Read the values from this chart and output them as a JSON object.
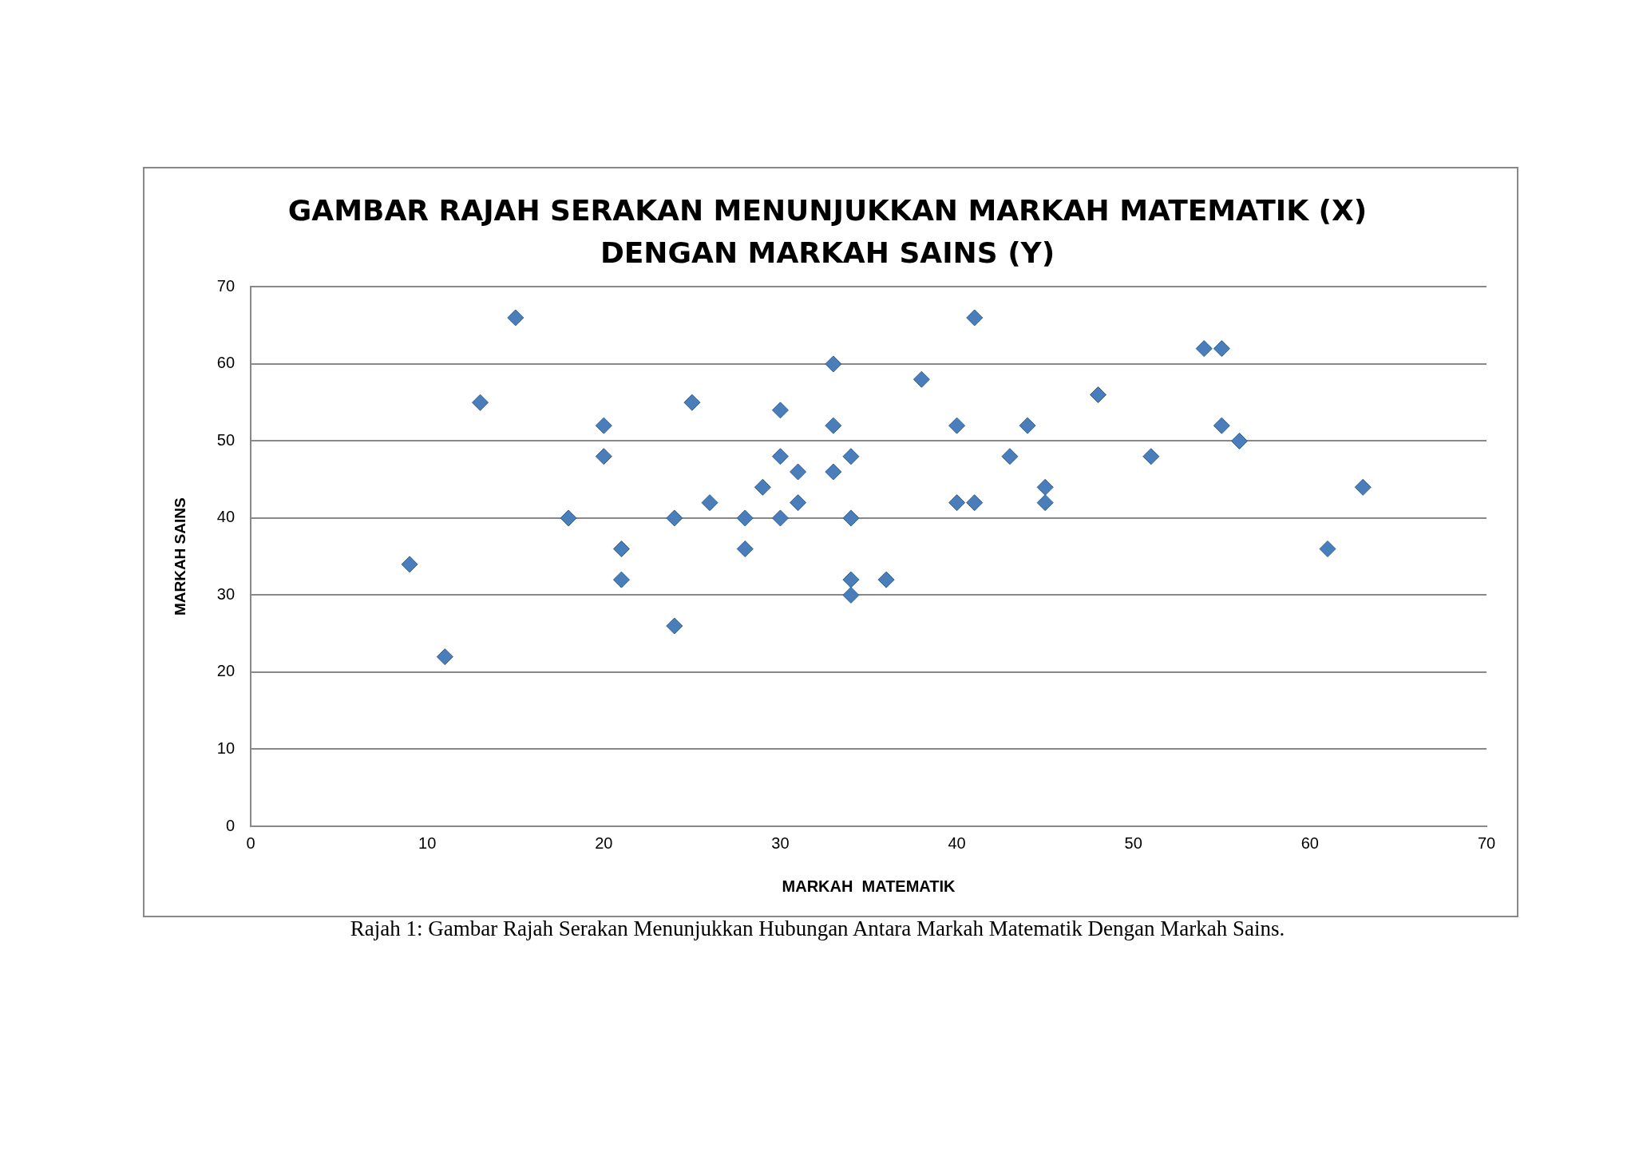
{
  "chart_data": {
    "type": "scatter",
    "title": "GAMBAR RAJAH SERAKAN MENUNJUKKAN MARKAH MATEMATIK (X)\nDENGAN MARKAH SAINS (Y)",
    "xlabel": "MARKAH  MATEMATIK",
    "ylabel": "MARKAH SAINS",
    "annotations": [
      "Rajah 1: Gambar Rajah Serakan Menunjukkan Hubungan Antara Markah Matematik Dengan Markah Sains."
    ],
    "x": [
      9,
      11,
      13,
      15,
      18,
      20,
      20,
      21,
      21,
      24,
      24,
      25,
      26,
      28,
      28,
      29,
      30,
      30,
      30,
      31,
      31,
      33,
      33,
      33,
      34,
      34,
      34,
      34,
      36,
      38,
      40,
      40,
      41,
      41,
      43,
      44,
      45,
      45,
      48,
      51,
      54,
      55,
      55,
      56,
      61,
      63
    ],
    "series": [
      {
        "color": "#4a7ebb",
        "values": [
          34,
          22,
          55,
          66,
          40,
          52,
          48,
          36,
          32,
          40,
          26,
          55,
          42,
          40,
          36,
          44,
          54,
          48,
          40,
          46,
          42,
          60,
          52,
          46,
          48,
          40,
          32,
          30,
          32,
          58,
          52,
          42,
          66,
          42,
          48,
          52,
          44,
          42,
          56,
          48,
          62,
          62,
          52,
          50,
          36,
          44
        ]
      }
    ],
    "xlim": [
      0,
      70
    ],
    "xticks": [
      0,
      10,
      20,
      30,
      40,
      50,
      60,
      70
    ],
    "ylim": [
      0,
      70
    ],
    "yticks": [
      0,
      10,
      20,
      30,
      40,
      50,
      60,
      70
    ],
    "grid": "y",
    "legend": false,
    "marker": "diamond"
  }
}
